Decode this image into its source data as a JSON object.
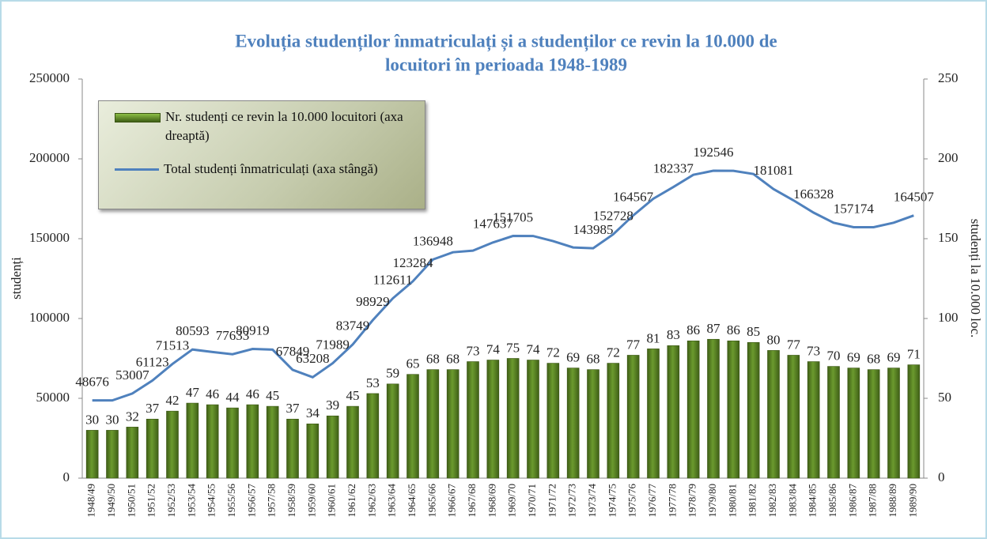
{
  "chart_data": {
    "type": "bar-line",
    "title": [
      "Evoluția studenților înmatriculați și a studenților ce revin la 10.000 de",
      "locuitori în perioada 1948-1989"
    ],
    "y_label": "studenți",
    "y2_label": "studenți la 10.000 loc.",
    "categories": [
      "1948/49",
      "1949/50",
      "1950/51",
      "1951/52",
      "1952/53",
      "1953/54",
      "1954/55",
      "1955/56",
      "1956/57",
      "1957/58",
      "1958/59",
      "1959/60",
      "1960/61",
      "1961/62",
      "1962/63",
      "1963/64",
      "1964/65",
      "1965/66",
      "1966/67",
      "1967/68",
      "1968/69",
      "1969/70",
      "1970/71",
      "1971/72",
      "1972/73",
      "1973/74",
      "1974/75",
      "1975/76",
      "1976/77",
      "1977/78",
      "1978/79",
      "1979/80",
      "1980/81",
      "1981/82",
      "1982/83",
      "1983/84",
      "1984/85",
      "1985/86",
      "1986/87",
      "1987/88",
      "1988/89",
      "1989/90"
    ],
    "series": [
      {
        "name": "Nr. studenți ce revin la 10.000 locuitori (axa dreaptă)",
        "type": "bar",
        "axis": "y2",
        "color": "#6b9a2e",
        "values": [
          30,
          30,
          32,
          37,
          42,
          47,
          46,
          44,
          46,
          45,
          37,
          34,
          39,
          45,
          53,
          59,
          65,
          68,
          68,
          73,
          74,
          75,
          74,
          72,
          69,
          68,
          72,
          77,
          81,
          83,
          86,
          87,
          86,
          85,
          80,
          77,
          73,
          70,
          69,
          68,
          69,
          71
        ]
      },
      {
        "name": "Total studenți înmatriculați (axa stângă)",
        "type": "line",
        "axis": "y",
        "color": "#4f81bd",
        "values": [
          48676,
          48700,
          53007,
          61123,
          71513,
          80593,
          79000,
          77633,
          80919,
          80500,
          67849,
          63208,
          71989,
          83749,
          98929,
          112611,
          123284,
          136948,
          141500,
          142500,
          147637,
          151705,
          151700,
          148500,
          144500,
          143985,
          152728,
          164567,
          175000,
          182337,
          190000,
          192546,
          192500,
          190500,
          181081,
          174000,
          166328,
          160000,
          157174,
          157174,
          160000,
          164507
        ],
        "value_labels": [
          "48676",
          null,
          "53007",
          "61123",
          "71513",
          "80593",
          null,
          "77633",
          "80919",
          null,
          "67849",
          "63208",
          "71989",
          "83749",
          "98929",
          "112611",
          "123284",
          "136948",
          null,
          null,
          "147637",
          "151705",
          null,
          null,
          null,
          "143985",
          "152728",
          "164567",
          null,
          "182337",
          null,
          "192546",
          null,
          null,
          "181081",
          null,
          "166328",
          null,
          "157174",
          null,
          null,
          "164507"
        ]
      }
    ],
    "ylim": [
      0,
      250000
    ],
    "yticks": [
      0,
      50000,
      100000,
      150000,
      200000,
      250000
    ],
    "y2lim": [
      0,
      250
    ],
    "y2ticks": [
      0,
      50,
      100,
      150,
      200,
      250
    ]
  }
}
